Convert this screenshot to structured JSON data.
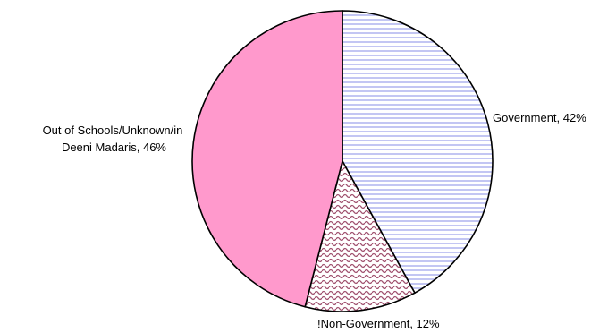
{
  "chart_data": {
    "type": "pie",
    "slices": [
      {
        "label": "Government",
        "value": 42,
        "display": "Government, 42%",
        "color": "#b4b8f0",
        "pattern": "horizontal-stripes"
      },
      {
        "label": "!Non-Government",
        "value": 12,
        "display": "!Non-Government, 12%",
        "color": "#a0506e",
        "pattern": "wavy"
      },
      {
        "label": "Out of Schools/Unknown/in Deeni Madaris",
        "value": 46,
        "display_lines": [
          "Out of Schools/Unknown/in",
          "Deeni Madaris, 46%"
        ],
        "color": "#ff99cc",
        "pattern": "solid"
      }
    ],
    "start_angle_deg": 0,
    "direction": "clockwise",
    "legend": "none"
  }
}
